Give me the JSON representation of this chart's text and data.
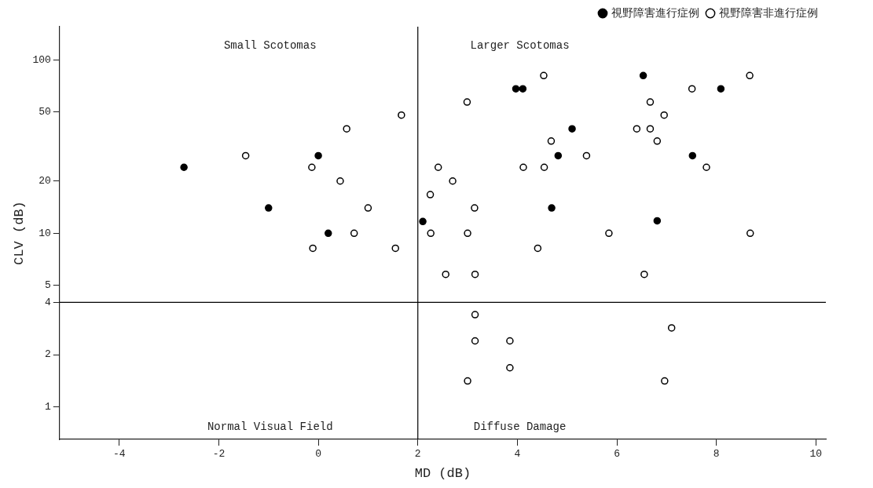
{
  "chart_data": {
    "type": "scatter",
    "xlabel": "MD (dB)",
    "ylabel": "CLV (dB)",
    "xlim": [
      -5.2,
      10.2
    ],
    "xticks": [
      -4,
      -2,
      0,
      2,
      4,
      6,
      8,
      10
    ],
    "ylim": [
      0.65,
      155
    ],
    "yticks": [
      1,
      2,
      4,
      5,
      10,
      20,
      50,
      100
    ],
    "log": "y",
    "grid": false,
    "marker": "circle",
    "legend": "top right",
    "ref_lines": [
      {
        "axis": "x",
        "value": 2,
        "color": "#000000"
      },
      {
        "axis": "y",
        "value": 4,
        "color": "#000000"
      }
    ],
    "annotations": [
      "Small Scotomas",
      "Larger Scotomas",
      "Normal Visual Field",
      "Diffuse Damage"
    ],
    "series": [
      {
        "name": "視野障害進行症例",
        "color": "#000000",
        "x": [
          -2.7,
          -1.0,
          0.0,
          0.2,
          2.1,
          3.97,
          4.11,
          4.69,
          4.82,
          5.1,
          6.53,
          6.81,
          7.52,
          8.09
        ],
        "values": [
          24,
          14,
          28,
          10,
          11.7,
          68,
          68,
          14,
          28,
          40,
          81,
          11.8,
          28,
          68
        ]
      },
      {
        "name": "視野障害非進行症例",
        "color": "#000000",
        "x": [
          -1.46,
          -0.13,
          0.44,
          0.57,
          1.67,
          1.0,
          0.72,
          -0.11,
          1.55,
          2.25,
          2.26,
          4.53,
          8.67,
          7.51,
          2.99,
          6.67,
          6.95,
          6.4,
          6.67,
          4.68,
          6.81,
          5.39,
          2.41,
          4.12,
          4.54,
          7.8,
          2.7,
          3.14,
          3.0,
          5.84,
          8.68,
          4.41,
          2.56,
          3.15,
          6.55,
          3.15,
          7.1,
          3.15,
          3.85,
          3.85,
          3.0,
          6.96
        ],
        "values": [
          28,
          24,
          20,
          40,
          48,
          14,
          10,
          8.2,
          8.2,
          16.7,
          10,
          81,
          81,
          68,
          57,
          57,
          48,
          40,
          40,
          34,
          34,
          28,
          24,
          24,
          24,
          24,
          20,
          14,
          10,
          10,
          10,
          8.2,
          5.8,
          5.8,
          5.8,
          3.4,
          2.85,
          2.4,
          2.4,
          1.68,
          1.41,
          1.41
        ]
      }
    ]
  }
}
